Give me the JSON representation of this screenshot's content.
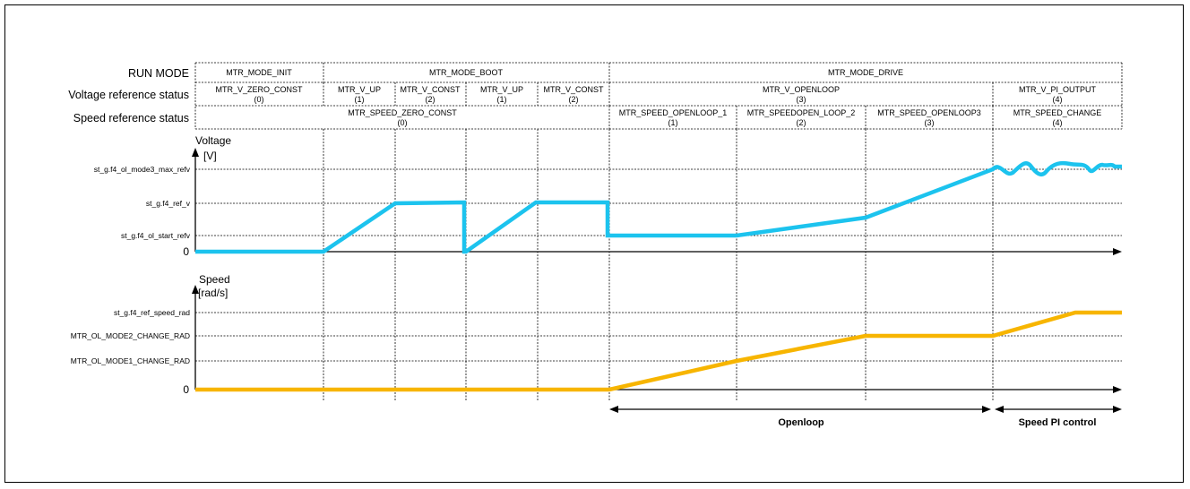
{
  "header_rows": {
    "run_mode": {
      "label": "RUN MODE",
      "cells": [
        "MTR_MODE_INIT",
        "MTR_MODE_BOOT",
        "MTR_MODE_DRIVE"
      ]
    },
    "voltage_status": {
      "label": "Voltage reference status",
      "cells": [
        {
          "name": "MTR_V_ZERO_CONST",
          "code": "(0)"
        },
        {
          "name": "MTR_V_UP",
          "code": "(1)"
        },
        {
          "name": "MTR_V_CONST",
          "code": "(2)"
        },
        {
          "name": "MTR_V_UP",
          "code": "(1)"
        },
        {
          "name": "MTR_V_CONST",
          "code": "(2)"
        },
        {
          "name": "MTR_V_OPENLOOP",
          "code": "(3)"
        },
        {
          "name": "MTR_V_PI_OUTPUT",
          "code": "(4)"
        }
      ]
    },
    "speed_status": {
      "label": "Speed reference status",
      "cells": [
        {
          "name": "MTR_SPEED_ZERO_CONST",
          "code": "(0)"
        },
        {
          "name": "MTR_SPEED_OPENLOOP_1",
          "code": "(1)"
        },
        {
          "name": "MTR_SPEEDOPEN_LOOP_2",
          "code": "(2)"
        },
        {
          "name": "MTR_SPEED_OPENLOOP3",
          "code": "(3)"
        },
        {
          "name": "MTR_SPEED_CHANGE",
          "code": "(4)"
        }
      ]
    }
  },
  "voltage_plot": {
    "title": "Voltage",
    "unit": "[V]",
    "levels": [
      "st_g.f4_ol_mode3_max_refv",
      "st_g.f4_ref_v",
      "st_g.f4_ol_start_refv",
      "0"
    ],
    "color": "#1cc3ee"
  },
  "speed_plot": {
    "title": "Speed",
    "unit": "[rad/s]",
    "levels": [
      "st_g.f4_ref_speed_rad",
      "MTR_OL_MODE2_CHANGE_RAD",
      "MTR_OL_MODE1_CHANGE_RAD",
      "0"
    ],
    "color": "#f7b500"
  },
  "bands": {
    "openloop": "Openloop",
    "speed_pi": "Speed PI control"
  }
}
